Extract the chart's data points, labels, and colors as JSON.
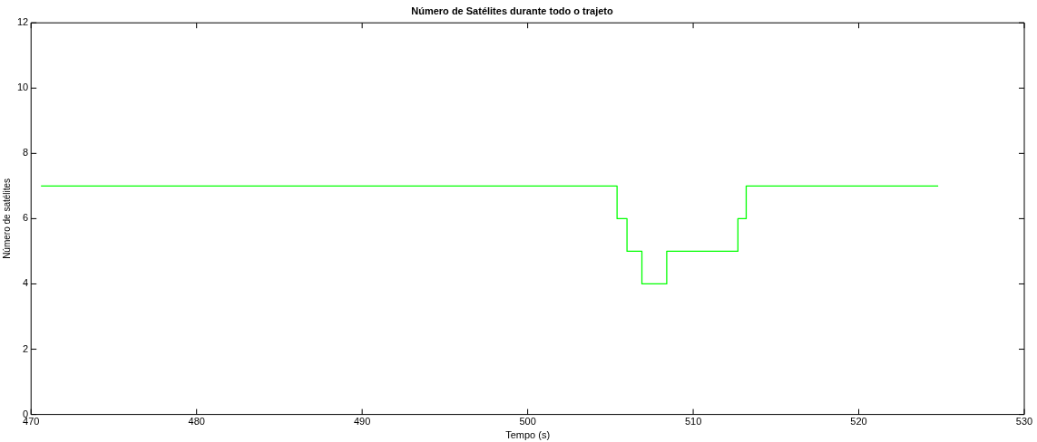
{
  "chart_data": {
    "type": "step",
    "title": "Número de Satélites durante todo o trajeto",
    "xlabel": "Tempo (s)",
    "ylabel": "Número de satélites",
    "x": [
      470.6,
      505.4,
      506.0,
      506.9,
      508.4,
      512.7,
      513.2,
      524.8
    ],
    "series": [
      {
        "color": "#00ff00",
        "values": [
          7,
          6,
          5,
          4,
          5,
          6,
          7,
          7
        ]
      }
    ],
    "xlim": [
      470,
      530
    ],
    "xticks": [
      470,
      480,
      490,
      500,
      510,
      520,
      530
    ],
    "ylim": [
      0,
      12
    ],
    "yticks": [
      0,
      2,
      4,
      6,
      8,
      10,
      12
    ],
    "grid": false,
    "legend": false
  }
}
